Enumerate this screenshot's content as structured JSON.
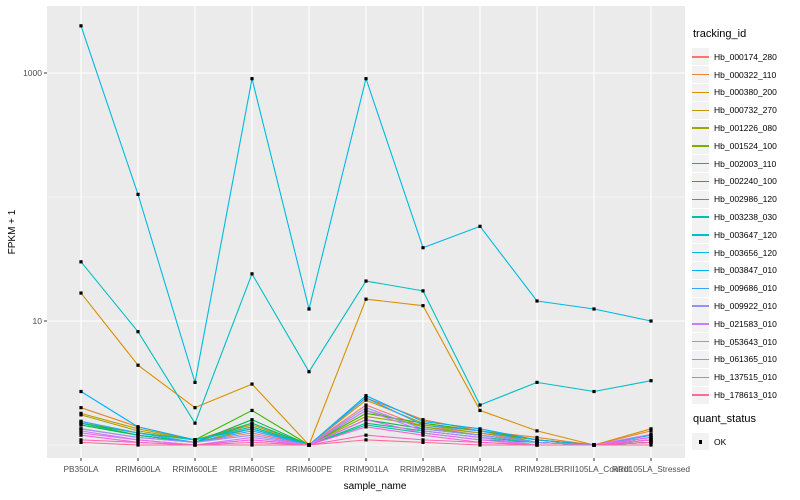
{
  "figure": {
    "y_axis_title": "FPKM + 1",
    "x_axis_title": "sample_name",
    "legend_title_tracking": "tracking_id",
    "legend_title_quant": "quant_status",
    "quant_status_label": "OK"
  },
  "chart_data": {
    "type": "line",
    "title": "",
    "xlabel": "sample_name",
    "ylabel": "FPKM + 1",
    "x_scale": "categorical",
    "y_scale": "log10",
    "ylim": [
      0.85,
      2600
    ],
    "y_ticks": [
      10,
      1000
    ],
    "y_minor_gridlines": [
      1,
      100
    ],
    "grid": "on",
    "legend_position": "right",
    "panel_background": "#EBEBEB",
    "gridline_color": "#FFFFFF",
    "point_marker": "black-square",
    "point_color": "#000000",
    "tick_text_color": "#4D4D4D",
    "categories": [
      "PB350LA",
      "RRIM600LA",
      "RRIM600LE",
      "RRIM600SE",
      "RRIM600PE",
      "RRIM901LA",
      "RRIM928BA",
      "RRIM928LA",
      "RRIM928LE",
      "RRII105LA_Control",
      "RRII105LA_Stressed"
    ],
    "series": [
      {
        "name": "Hb_000174_280",
        "color": "#F8766D",
        "values": [
          1.35,
          1.15,
          1.05,
          1.25,
          1.0,
          2.1,
          1.4,
          1.25,
          1.05,
          1.0,
          1.1
        ]
      },
      {
        "name": "Hb_000322_110",
        "color": "#EA8331",
        "values": [
          2.0,
          1.4,
          1.1,
          1.5,
          1.0,
          2.4,
          1.6,
          1.3,
          1.15,
          1.0,
          1.3
        ]
      },
      {
        "name": "Hb_000380_200",
        "color": "#D89000",
        "values": [
          16.8,
          4.4,
          2.0,
          3.1,
          1.0,
          15.0,
          13.3,
          1.9,
          1.3,
          1.0,
          1.35
        ]
      },
      {
        "name": "Hb_000732_270",
        "color": "#C09B00",
        "values": [
          1.8,
          1.35,
          1.1,
          1.45,
          1.0,
          2.3,
          1.5,
          1.3,
          1.1,
          1.0,
          1.2
        ]
      },
      {
        "name": "Hb_001226_080",
        "color": "#A3A500",
        "values": [
          1.75,
          1.3,
          1.1,
          1.4,
          1.0,
          1.7,
          1.45,
          1.25,
          1.1,
          1.0,
          1.15
        ]
      },
      {
        "name": "Hb_001524_100",
        "color": "#7CAE00",
        "values": [
          1.45,
          1.2,
          1.05,
          1.35,
          1.0,
          1.9,
          1.4,
          1.2,
          1.05,
          1.0,
          1.1
        ]
      },
      {
        "name": "Hb_002003_110",
        "color": "#39B600",
        "values": [
          1.5,
          1.25,
          1.1,
          1.9,
          1.0,
          1.8,
          1.5,
          1.3,
          1.1,
          1.0,
          1.1
        ]
      },
      {
        "name": "Hb_002240_100",
        "color": "#00BB4E",
        "values": [
          1.45,
          1.2,
          1.05,
          1.6,
          1.0,
          1.6,
          1.35,
          1.2,
          1.05,
          1.0,
          1.05
        ]
      },
      {
        "name": "Hb_002986_120",
        "color": "#00BF7D",
        "values": [
          1.5,
          1.2,
          1.05,
          1.5,
          1.0,
          1.5,
          1.3,
          1.15,
          1.05,
          1.0,
          1.05
        ]
      },
      {
        "name": "Hb_003238_030",
        "color": "#00C1A3",
        "values": [
          1.55,
          1.25,
          1.1,
          1.4,
          1.0,
          1.45,
          1.25,
          1.1,
          1.05,
          1.0,
          1.05
        ]
      },
      {
        "name": "Hb_003647_120",
        "color": "#00BFC4",
        "values": [
          30,
          8.2,
          1.5,
          24,
          3.9,
          21,
          17.5,
          2.1,
          3.2,
          2.7,
          3.3
        ]
      },
      {
        "name": "Hb_003656_120",
        "color": "#00BAE0",
        "values": [
          2400,
          105,
          3.2,
          900,
          12.5,
          900,
          39,
          58,
          14.5,
          12.5,
          10
        ]
      },
      {
        "name": "Hb_003847_010",
        "color": "#00B0F6",
        "values": [
          2.7,
          1.4,
          1.1,
          1.35,
          1.0,
          2.5,
          1.55,
          1.35,
          1.1,
          1.0,
          1.2
        ]
      },
      {
        "name": "Hb_009686_010",
        "color": "#35A2FF",
        "values": [
          1.55,
          1.25,
          1.05,
          1.3,
          1.0,
          2.4,
          1.45,
          1.3,
          1.05,
          1.0,
          1.15
        ]
      },
      {
        "name": "Hb_009922_010",
        "color": "#9590FF",
        "values": [
          1.35,
          1.15,
          1.05,
          1.2,
          1.0,
          2.0,
          1.35,
          1.2,
          1.05,
          1.0,
          1.1
        ]
      },
      {
        "name": "Hb_021583_010",
        "color": "#C77CFF",
        "values": [
          1.3,
          1.1,
          1.0,
          1.15,
          1.0,
          1.9,
          1.3,
          1.15,
          1.0,
          1.0,
          1.22
        ]
      },
      {
        "name": "Hb_053643_010",
        "color": "#E76BF3",
        "values": [
          1.25,
          1.1,
          1.0,
          1.1,
          1.0,
          1.6,
          1.25,
          1.1,
          1.0,
          1.0,
          1.15
        ]
      },
      {
        "name": "Hb_061365_010",
        "color": "#FA62DB",
        "values": [
          1.2,
          1.05,
          1.0,
          1.1,
          1.0,
          1.4,
          1.2,
          1.05,
          1.0,
          1.0,
          1.1
        ]
      },
      {
        "name": "Hb_137515_010",
        "color": "#FF62BC",
        "values": [
          1.1,
          1.05,
          1.0,
          1.05,
          1.0,
          1.2,
          1.1,
          1.05,
          1.0,
          1.0,
          1.05
        ]
      },
      {
        "name": "Hb_178613_010",
        "color": "#FF6A98",
        "values": [
          1.05,
          1.0,
          1.0,
          1.0,
          1.0,
          1.1,
          1.05,
          1.0,
          1.0,
          1.0,
          1.0
        ]
      }
    ]
  }
}
